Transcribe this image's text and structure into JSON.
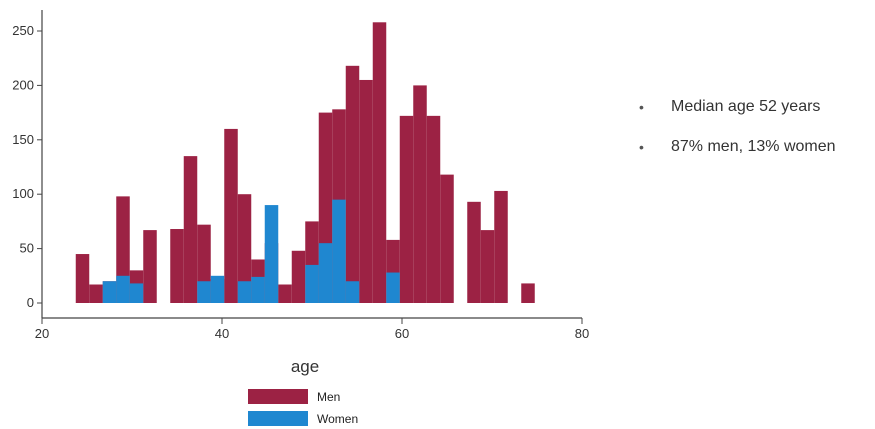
{
  "chart_data": {
    "type": "bar",
    "xlabel": "age",
    "ylabel": "",
    "xlim": [
      20,
      80
    ],
    "ylim": [
      0,
      260
    ],
    "x_ticks": [
      "20",
      "40",
      "60",
      "80"
    ],
    "y_ticks": [
      "0",
      "50",
      "100",
      "150",
      "200",
      "250"
    ],
    "bin_width": 1.5,
    "legend_position": "bottom",
    "colors": {
      "men": "#9c2244",
      "women": "#1f87d0"
    },
    "series": [
      {
        "name": "Men",
        "bins": [
          {
            "x": 24.5,
            "value": 45
          },
          {
            "x": 26,
            "value": 17
          },
          {
            "x": 27.5,
            "value": 20
          },
          {
            "x": 29,
            "value": 98
          },
          {
            "x": 30.5,
            "value": 30
          },
          {
            "x": 32,
            "value": 67
          },
          {
            "x": 35,
            "value": 68
          },
          {
            "x": 36.5,
            "value": 135
          },
          {
            "x": 38,
            "value": 72
          },
          {
            "x": 39.5,
            "value": 22
          },
          {
            "x": 41,
            "value": 160
          },
          {
            "x": 42.5,
            "value": 100
          },
          {
            "x": 44,
            "value": 40
          },
          {
            "x": 45.5,
            "value": 55
          },
          {
            "x": 47,
            "value": 17
          },
          {
            "x": 48.5,
            "value": 48
          },
          {
            "x": 50,
            "value": 75
          },
          {
            "x": 51.5,
            "value": 175
          },
          {
            "x": 53,
            "value": 178
          },
          {
            "x": 54.5,
            "value": 218
          },
          {
            "x": 56,
            "value": 205
          },
          {
            "x": 57.5,
            "value": 258
          },
          {
            "x": 59,
            "value": 58
          },
          {
            "x": 60.5,
            "value": 172
          },
          {
            "x": 62,
            "value": 200
          },
          {
            "x": 63.5,
            "value": 172
          },
          {
            "x": 65,
            "value": 118
          },
          {
            "x": 68,
            "value": 93
          },
          {
            "x": 69.5,
            "value": 67
          },
          {
            "x": 71,
            "value": 103
          },
          {
            "x": 74,
            "value": 18
          }
        ]
      },
      {
        "name": "Women",
        "bins": [
          {
            "x": 27.5,
            "value": 20
          },
          {
            "x": 29,
            "value": 25
          },
          {
            "x": 30.5,
            "value": 18
          },
          {
            "x": 38,
            "value": 20
          },
          {
            "x": 39.5,
            "value": 25
          },
          {
            "x": 42.5,
            "value": 20
          },
          {
            "x": 44,
            "value": 24
          },
          {
            "x": 45.5,
            "value": 90
          },
          {
            "x": 50,
            "value": 35
          },
          {
            "x": 51.5,
            "value": 55
          },
          {
            "x": 53,
            "value": 95
          },
          {
            "x": 54.5,
            "value": 20
          },
          {
            "x": 59,
            "value": 28
          }
        ]
      }
    ]
  },
  "bullets": [
    "Median age 52 years",
    "87% men, 13% women"
  ]
}
